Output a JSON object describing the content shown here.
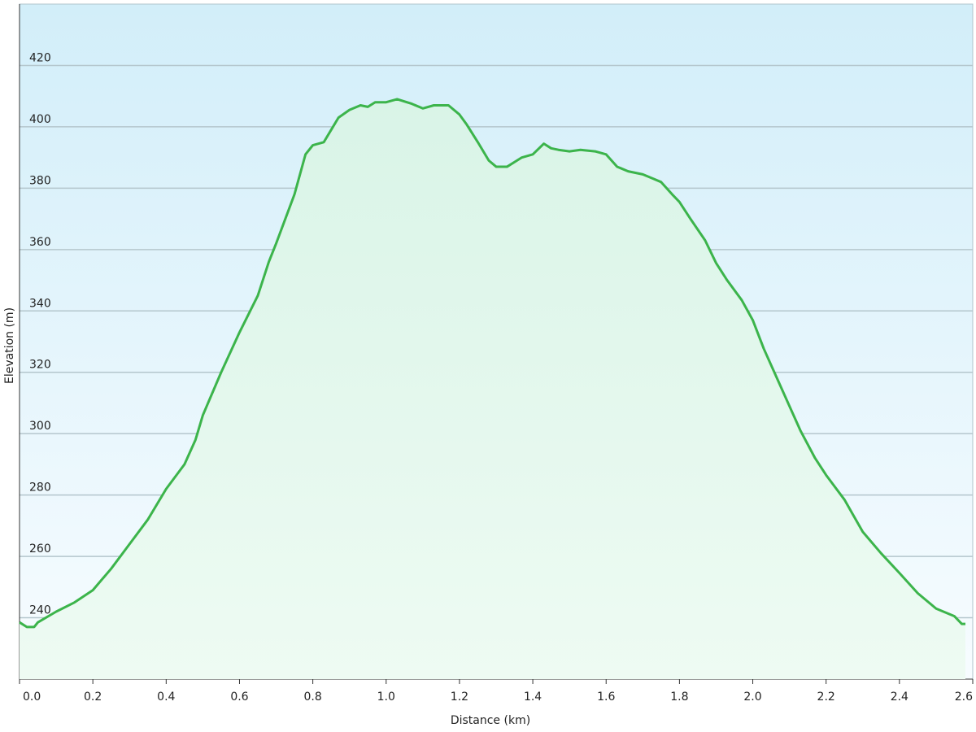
{
  "chart_data": {
    "type": "area",
    "x_label": "Distance  (km)",
    "y_label": "Elevation (m)",
    "x": [
      0.0,
      0.02,
      0.04,
      0.05,
      0.1,
      0.15,
      0.2,
      0.25,
      0.3,
      0.35,
      0.4,
      0.45,
      0.48,
      0.49,
      0.5,
      0.55,
      0.6,
      0.65,
      0.68,
      0.7,
      0.75,
      0.78,
      0.8,
      0.83,
      0.85,
      0.87,
      0.9,
      0.93,
      0.95,
      0.97,
      1.0,
      1.03,
      1.07,
      1.1,
      1.13,
      1.17,
      1.2,
      1.22,
      1.25,
      1.28,
      1.3,
      1.33,
      1.37,
      1.4,
      1.43,
      1.45,
      1.47,
      1.5,
      1.53,
      1.57,
      1.6,
      1.63,
      1.66,
      1.7,
      1.73,
      1.75,
      1.78,
      1.8,
      1.83,
      1.87,
      1.9,
      1.93,
      1.97,
      2.0,
      2.03,
      2.07,
      2.1,
      2.13,
      2.17,
      2.2,
      2.25,
      2.3,
      2.35,
      2.4,
      2.45,
      2.5,
      2.55,
      2.57,
      2.58
    ],
    "values": [
      238.5,
      237,
      237,
      238.5,
      242,
      245,
      249,
      256,
      264,
      272,
      282,
      290,
      298,
      302,
      306,
      320,
      333,
      345,
      356,
      362,
      378,
      391,
      394,
      395,
      399,
      403,
      405.5,
      407,
      406.5,
      408,
      408,
      409,
      407.5,
      406,
      407,
      407,
      404,
      400.7,
      395,
      389,
      387,
      387,
      390,
      391,
      394.5,
      393,
      392.5,
      392,
      392.5,
      392,
      391,
      387,
      385.5,
      384.5,
      383,
      382,
      378,
      375.5,
      370,
      363,
      355.6,
      350,
      343.5,
      337,
      327.7,
      317,
      309,
      301,
      292,
      286.5,
      278.5,
      268,
      261,
      254.6,
      248,
      243,
      240.5,
      238,
      238
    ],
    "color": "#3cb44b",
    "fill_color": "#d9f4e7",
    "background_color": "#d2eef9",
    "grid": true,
    "xlim": [
      0,
      2.6
    ],
    "ylim": [
      220,
      440
    ],
    "xticks": [
      {
        "value": 0,
        "label": "0.0"
      },
      0.2,
      0.4,
      0.6,
      0.8,
      {
        "value": 1,
        "label": "1.0"
      },
      1.2,
      1.4,
      1.6,
      1.8,
      {
        "value": 2,
        "label": "2.0"
      },
      2.2,
      2.4,
      2.6
    ],
    "yticks": [
      240,
      260,
      280,
      300,
      320,
      340,
      360,
      380,
      400,
      420
    ]
  }
}
